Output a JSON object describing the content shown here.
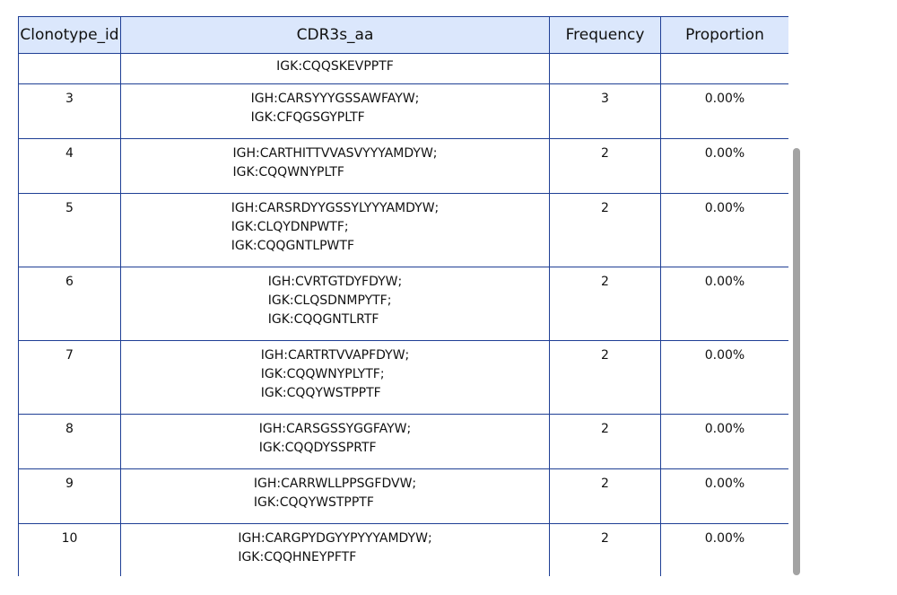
{
  "table": {
    "headers": [
      "Clonotype_id",
      "CDR3s_aa",
      "Frequency",
      "Proportion"
    ],
    "partial_row": {
      "cdr3": [
        "IGK:CQQSKEVPPTF"
      ]
    },
    "rows": [
      {
        "id": "3",
        "cdr3": [
          "IGH:CARSYYYGSSAWFAYW;",
          "IGK:CFQGSGYPLTF"
        ],
        "frequency": "3",
        "proportion": "0.00%"
      },
      {
        "id": "4",
        "cdr3": [
          "IGH:CARTHITTVVASVYYYAMDYW;",
          "IGK:CQQWNYPLTF"
        ],
        "frequency": "2",
        "proportion": "0.00%"
      },
      {
        "id": "5",
        "cdr3": [
          "IGH:CARSRDYYGSSYLYYYAMDYW;",
          "IGK:CLQYDNPWTF;",
          "IGK:CQQGNTLPWTF"
        ],
        "frequency": "2",
        "proportion": "0.00%"
      },
      {
        "id": "6",
        "cdr3": [
          "IGH:CVRTGTDYFDYW;",
          "IGK:CLQSDNMPYTF;",
          "IGK:CQQGNTLRTF"
        ],
        "frequency": "2",
        "proportion": "0.00%"
      },
      {
        "id": "7",
        "cdr3": [
          "IGH:CARTRTVVAPFDYW;",
          "IGK:CQQWNYPLYTF;",
          "IGK:CQQYWSTPPTF"
        ],
        "frequency": "2",
        "proportion": "0.00%"
      },
      {
        "id": "8",
        "cdr3": [
          "IGH:CARSGSSYGGFAYW;",
          "IGK:CQQDYSSPRTF"
        ],
        "frequency": "2",
        "proportion": "0.00%"
      },
      {
        "id": "9",
        "cdr3": [
          "IGH:CARRWLLPPSGFDVW;",
          "IGK:CQQYWSTPPTF"
        ],
        "frequency": "2",
        "proportion": "0.00%"
      },
      {
        "id": "10",
        "cdr3": [
          "IGH:CARGPYDGYYPYYYAMDYW;",
          "IGK:CQQHNEYPFTF"
        ],
        "frequency": "2",
        "proportion": "0.00%"
      }
    ]
  }
}
